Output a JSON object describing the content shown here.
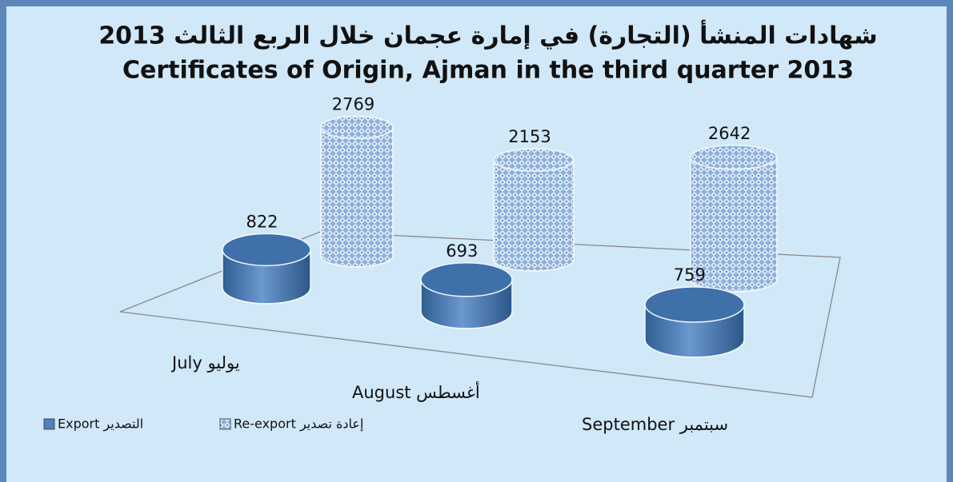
{
  "chart_data": {
    "type": "bar3d",
    "title": "شهادات المنشأ (التجارة) في إمارة عجمان خلال الربع الثالث 2013",
    "subtitle": "Certificates of Origin, Ajman in the third quarter 2013",
    "categories": [
      "July يوليو",
      "August أغسطس",
      "September سبتمبر"
    ],
    "series": [
      {
        "name": "Export التصدير",
        "color": "#4f81bd",
        "values": [
          822,
          693,
          759
        ]
      },
      {
        "name": "Re-export إعادة تصدير",
        "color": "#8fb1dc",
        "pattern": "crosshatch",
        "values": [
          2769,
          2153,
          2642
        ]
      }
    ]
  }
}
